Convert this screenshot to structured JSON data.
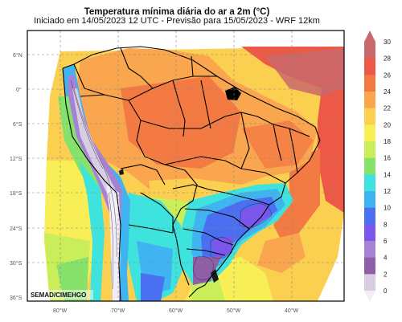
{
  "header": {
    "title": "Temperatura mínima diária do ar a 2m (°C)",
    "subtitle": "Iniciado em 14/05/2023 12 UTC - Previsão para 15/05/2023 - WRF 12km"
  },
  "map": {
    "credit": "SEMAD/CIMEHGO",
    "lat_labels": [
      "6°N",
      "0°",
      "6°S",
      "12°S",
      "18°S",
      "24°S",
      "30°S",
      "36°S"
    ],
    "lon_labels": [
      "80°W",
      "70°W",
      "60°W",
      "50°W",
      "40°W"
    ]
  },
  "colorbar": {
    "labels": [
      "30",
      "28",
      "26",
      "24",
      "22",
      "20",
      "18",
      "16",
      "14",
      "12",
      "10",
      "8",
      "6",
      "4",
      "2",
      "0"
    ],
    "colors": [
      "#c9696b",
      "#ec5a47",
      "#f47a43",
      "#f9a64f",
      "#fbcf4f",
      "#f7ef55",
      "#c9ee5a",
      "#87e26b",
      "#3ee3dd",
      "#3fb4f0",
      "#4a6ff0",
      "#7a56ea",
      "#a682d6",
      "#8e5ea6",
      "#d8cde2",
      "#f2eef7"
    ]
  }
}
